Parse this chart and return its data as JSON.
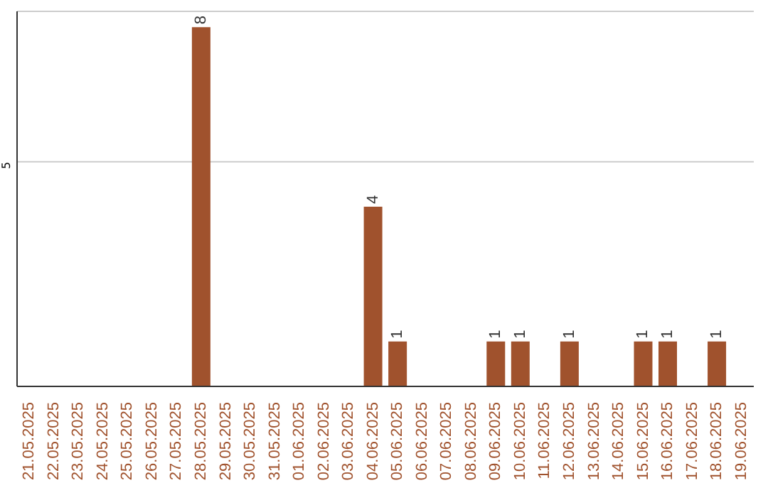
{
  "chart_data": {
    "type": "bar",
    "categories": [
      "21.05.2025",
      "22.05.2025",
      "23.05.2025",
      "24.05.2025",
      "25.05.2025",
      "26.05.2025",
      "27.05.2025",
      "28.05.2025",
      "29.05.2025",
      "30.05.2025",
      "31.05.2025",
      "01.06.2025",
      "02.06.2025",
      "03.06.2025",
      "04.06.2025",
      "05.06.2025",
      "06.06.2025",
      "07.06.2025",
      "08.06.2025",
      "09.06.2025",
      "10.06.2025",
      "11.06.2025",
      "12.06.2025",
      "13.06.2025",
      "14.06.2025",
      "15.06.2025",
      "16.06.2025",
      "17.06.2025",
      "18.06.2025",
      "19.06.2025"
    ],
    "values": [
      0,
      0,
      0,
      0,
      0,
      0,
      0,
      8,
      0,
      0,
      0,
      0,
      0,
      0,
      4,
      1,
      0,
      0,
      0,
      1,
      1,
      0,
      1,
      0,
      0,
      1,
      1,
      0,
      1,
      0
    ],
    "value_labels": [
      null,
      null,
      null,
      null,
      null,
      null,
      null,
      "8",
      null,
      null,
      null,
      null,
      null,
      null,
      "4",
      "1",
      null,
      null,
      null,
      "1",
      "1",
      null,
      "1",
      null,
      null,
      "1",
      "1",
      null,
      "1",
      null
    ],
    "color": "#a0522d",
    "ylim": [
      0,
      8.35
    ],
    "yticks": [
      5
    ],
    "grid": "y",
    "legend": false
  }
}
